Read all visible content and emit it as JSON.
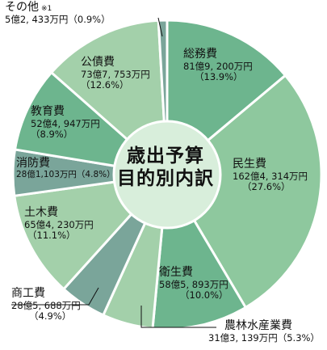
{
  "chart_data": {
    "type": "pie",
    "title": "歳出予算 目的別内訳",
    "title_lines": [
      "歳出予算",
      "目的別内訳"
    ],
    "unit": "億円",
    "slices": [
      {
        "name": "総務費",
        "amount": "81億9, 200万円",
        "pct": "（13.9%）",
        "value": 13.9,
        "color": "#6db58e"
      },
      {
        "name": "民生費",
        "amount": "162億4, 314万円",
        "pct": "（27.6%）",
        "value": 27.6,
        "color": "#8ec89e"
      },
      {
        "name": "衛生費",
        "amount": "58億5, 893万円",
        "pct": "（10.0%）",
        "value": 10.0,
        "color": "#6db58e"
      },
      {
        "name": "農林水産業費",
        "amount": "31億3, 139万円",
        "pct": "（5.3%）",
        "value": 5.3,
        "color": "#a3d0aa"
      },
      {
        "name": "商工費",
        "amount": "28億5, 688万円",
        "pct": "（4.9%）",
        "value": 4.9,
        "color": "#7aa59a"
      },
      {
        "name": "土木費",
        "amount": "65億4, 230万円",
        "pct": "（11.1%）",
        "value": 11.1,
        "color": "#a3d0aa"
      },
      {
        "name": "消防費",
        "amount": "28億1,103万円",
        "pct": "（4.8%）",
        "value": 4.8,
        "color": "#7aa59a"
      },
      {
        "name": "教育費",
        "amount": "52億4, 947万円",
        "pct": "（8.9%）",
        "value": 8.9,
        "color": "#6db58e"
      },
      {
        "name": "公債費",
        "amount": "73億7, 753万円",
        "pct": "（12.6%）",
        "value": 12.6,
        "color": "#a3d0aa"
      },
      {
        "name": "その他",
        "note": "※1",
        "amount": "5億2, 433万円（0.9%）",
        "value": 0.9,
        "color": "#7aa59a"
      }
    ]
  }
}
